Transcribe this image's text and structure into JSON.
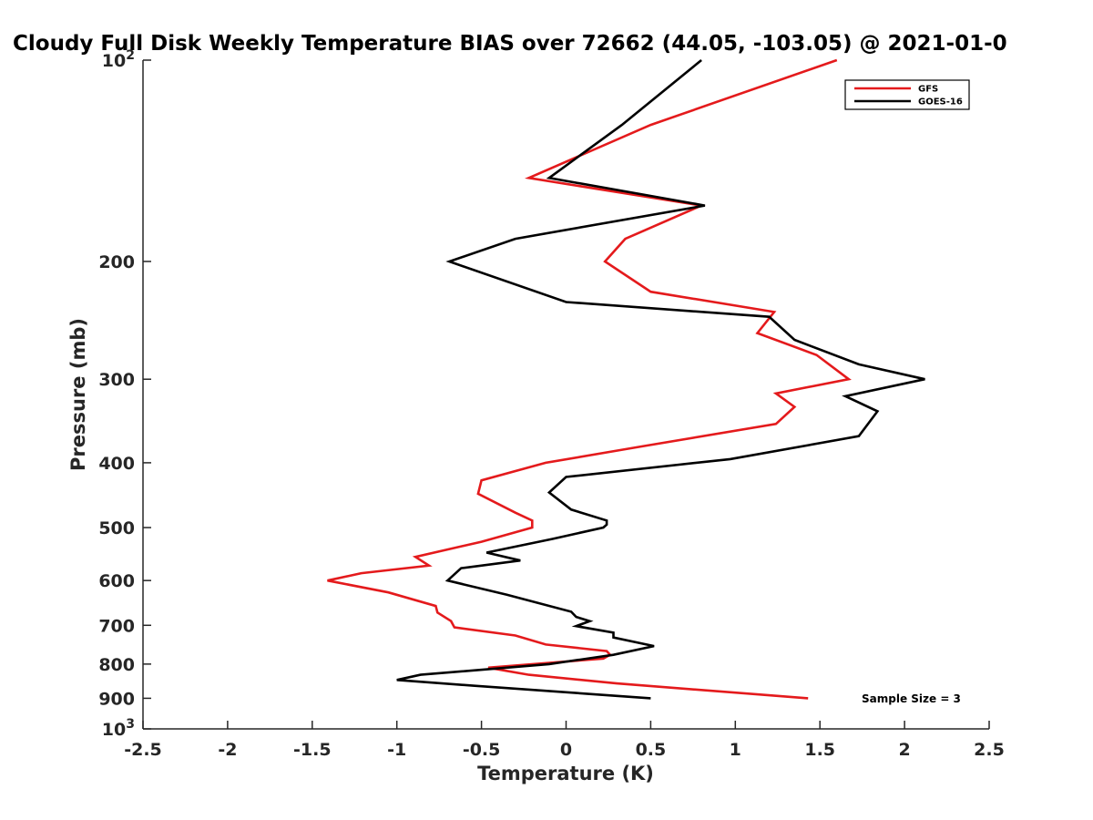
{
  "chart_data": {
    "type": "line",
    "title": "Cloudy Full Disk Weekly Temperature BIAS over 72662 (44.05, -103.05) @ 2021-01-0",
    "xlabel": "Temperature (K)",
    "ylabel": "Pressure (mb)",
    "xlim": [
      -2.5,
      2.5
    ],
    "ylim": [
      100,
      1000
    ],
    "y_scale": "log",
    "y_reversed": true,
    "grid": false,
    "legend_position": "top-right",
    "xticks": [
      -2.5,
      -2,
      -1.5,
      -1,
      -0.5,
      0,
      0.5,
      1,
      1.5,
      2,
      2.5
    ],
    "xtick_labels": [
      "-2.5",
      "-2",
      "-1.5",
      "-1",
      "-0.5",
      "0",
      "0.5",
      "1",
      "1.5",
      "2",
      "2.5"
    ],
    "yticks": [
      {
        "value": 100,
        "base": "10",
        "exp": "2"
      },
      {
        "value": 200,
        "label": "200"
      },
      {
        "value": 300,
        "label": "300"
      },
      {
        "value": 400,
        "label": "400"
      },
      {
        "value": 500,
        "label": "500"
      },
      {
        "value": 600,
        "label": "600"
      },
      {
        "value": 700,
        "label": "700"
      },
      {
        "value": 800,
        "label": "800"
      },
      {
        "value": 900,
        "label": "900"
      },
      {
        "value": 1000,
        "base": "10",
        "exp": "3"
      }
    ],
    "annotation": "Sample Size = 3",
    "series": [
      {
        "name": "GFS",
        "color": "#e41a1c",
        "points": [
          [
            1.6,
            100
          ],
          [
            0.5,
            125
          ],
          [
            -0.22,
            150
          ],
          [
            0.8,
            165
          ],
          [
            0.35,
            185
          ],
          [
            0.23,
            200
          ],
          [
            0.5,
            222
          ],
          [
            1.23,
            238
          ],
          [
            1.13,
            256
          ],
          [
            1.48,
            276
          ],
          [
            1.67,
            300
          ],
          [
            1.24,
            315
          ],
          [
            1.35,
            330
          ],
          [
            1.24,
            350
          ],
          [
            0.45,
            378
          ],
          [
            -0.12,
            400
          ],
          [
            -0.5,
            425
          ],
          [
            -0.52,
            445
          ],
          [
            -0.3,
            475
          ],
          [
            -0.2,
            488
          ],
          [
            -0.2,
            500
          ],
          [
            -0.5,
            525
          ],
          [
            -0.89,
            553
          ],
          [
            -0.81,
            570
          ],
          [
            -1.21,
            585
          ],
          [
            -1.41,
            600
          ],
          [
            -1.05,
            625
          ],
          [
            -0.77,
            655
          ],
          [
            -0.76,
            670
          ],
          [
            -0.68,
            690
          ],
          [
            -0.66,
            705
          ],
          [
            -0.3,
            725
          ],
          [
            -0.12,
            748
          ],
          [
            0.24,
            765
          ],
          [
            0.26,
            775
          ],
          [
            0.22,
            785
          ],
          [
            -0.46,
            810
          ],
          [
            -0.22,
            830
          ],
          [
            0.3,
            855
          ],
          [
            1.43,
            900
          ]
        ]
      },
      {
        "name": "GOES-16",
        "color": "#000000",
        "points": [
          [
            0.8,
            100
          ],
          [
            0.33,
            125
          ],
          [
            -0.1,
            150
          ],
          [
            0.82,
            165
          ],
          [
            -0.3,
            185
          ],
          [
            -0.69,
            200
          ],
          [
            0.0,
            230
          ],
          [
            1.2,
            242
          ],
          [
            1.35,
            262
          ],
          [
            1.73,
            285
          ],
          [
            2.12,
            300
          ],
          [
            1.65,
            318
          ],
          [
            1.84,
            335
          ],
          [
            1.73,
            365
          ],
          [
            0.97,
            395
          ],
          [
            0.0,
            420
          ],
          [
            -0.1,
            443
          ],
          [
            0.03,
            470
          ],
          [
            0.24,
            488
          ],
          [
            0.24,
            495
          ],
          [
            0.22,
            500
          ],
          [
            -0.08,
            520
          ],
          [
            -0.47,
            545
          ],
          [
            -0.27,
            560
          ],
          [
            -0.62,
            575
          ],
          [
            -0.7,
            600
          ],
          [
            -0.35,
            630
          ],
          [
            0.03,
            668
          ],
          [
            0.06,
            680
          ],
          [
            0.14,
            690
          ],
          [
            0.06,
            702
          ],
          [
            0.28,
            718
          ],
          [
            0.28,
            730
          ],
          [
            0.52,
            752
          ],
          [
            0.28,
            775
          ],
          [
            -0.1,
            800
          ],
          [
            -0.86,
            830
          ],
          [
            -1.0,
            845
          ],
          [
            -0.54,
            862
          ],
          [
            0.5,
            900
          ]
        ]
      }
    ]
  }
}
